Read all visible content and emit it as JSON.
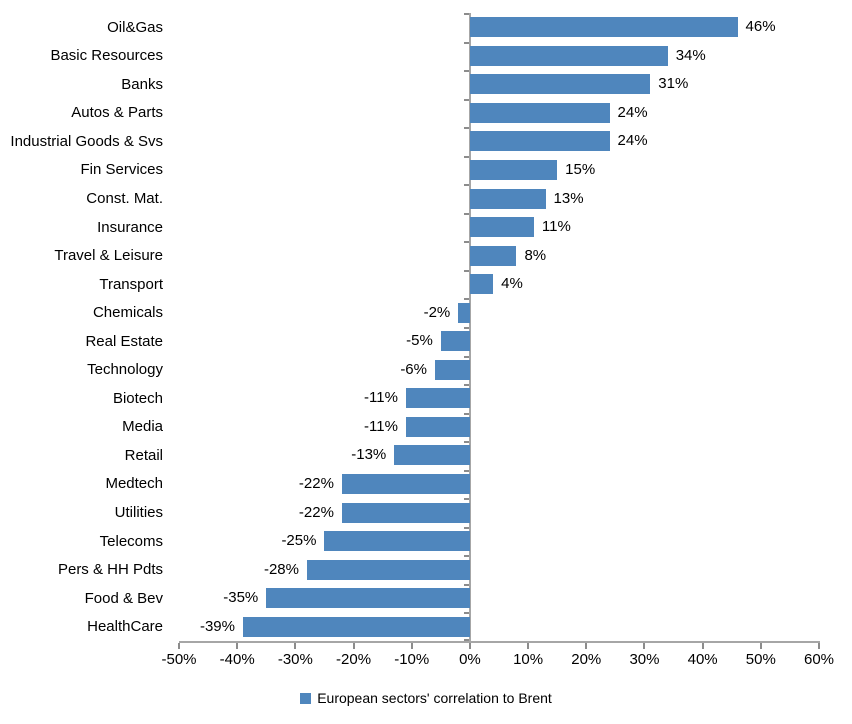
{
  "chart_data": {
    "type": "bar",
    "orientation": "horizontal",
    "title": "",
    "categories": [
      "Oil&Gas",
      "Basic Resources",
      "Banks",
      "Autos & Parts",
      "Industrial Goods & Svs",
      "Fin Services",
      "Const. Mat.",
      "Insurance",
      "Travel & Leisure",
      "Transport",
      "Chemicals",
      "Real Estate",
      "Technology",
      "Biotech",
      "Media",
      "Retail",
      "Medtech",
      "Utilities",
      "Telecoms",
      "Pers & HH Pdts",
      "Food & Bev",
      "HealthCare"
    ],
    "values": [
      46,
      34,
      31,
      24,
      24,
      15,
      13,
      11,
      8,
      4,
      -2,
      -5,
      -6,
      -11,
      -11,
      -13,
      -22,
      -22,
      -25,
      -28,
      -35,
      -39
    ],
    "value_labels": [
      "46%",
      "34%",
      "31%",
      "24%",
      "24%",
      "15%",
      "13%",
      "11%",
      "8%",
      "4%",
      "-2%",
      "-5%",
      "-6%",
      "-11%",
      "-11%",
      "-13%",
      "-22%",
      "-22%",
      "-25%",
      "-28%",
      "-35%",
      "-39%"
    ],
    "xlim": [
      -50,
      60
    ],
    "x_ticks": {
      "values": [
        -50,
        -40,
        -30,
        -20,
        -10,
        0,
        10,
        20,
        30,
        40,
        50,
        60
      ],
      "labels": [
        "-50%",
        "-40%",
        "-30%",
        "-20%",
        "-10%",
        "0%",
        "10%",
        "20%",
        "30%",
        "40%",
        "50%",
        "60%"
      ]
    },
    "grid": "off",
    "legend_position": "bottom-center",
    "legend": {
      "label": "European sectors' correlation to Brent"
    },
    "colors": {
      "bar": "#4f86bd",
      "axis_line": "#a6a6a6",
      "tick_mark": "#8c8c8c",
      "text": "#000000"
    }
  }
}
